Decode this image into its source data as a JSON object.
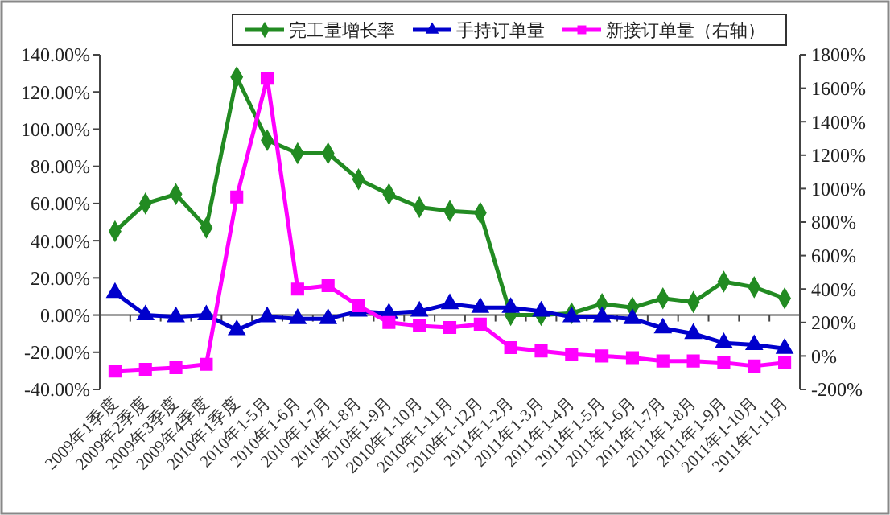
{
  "chart_data": {
    "type": "line",
    "categories": [
      "2009年1季度",
      "2009年2季度",
      "2009年3季度",
      "2009年4季度",
      "2010年1季度",
      "2010年1-5月",
      "2010年1-6月",
      "2010年1-7月",
      "2010年1-8月",
      "2010年1-9月",
      "2010年1-10月",
      "2010年1-11月",
      "2010年1-12月",
      "2011年1-2月",
      "2011年1-3月",
      "2011年1-4月",
      "2011年1-5月",
      "2011年1-6月",
      "2011年1-7月",
      "2011年1-8月",
      "2011年1-9月",
      "2011年1-10月",
      "2011年1-11月"
    ],
    "series": [
      {
        "name": "完工量增长率",
        "color": "#228b22",
        "marker": "diamond",
        "values": [
          45,
          60,
          65,
          47,
          128,
          94,
          87,
          87,
          73,
          65,
          58,
          56,
          55,
          0,
          0,
          1,
          6,
          4,
          9,
          7,
          18,
          15,
          9
        ]
      },
      {
        "name": "手持订单量",
        "color": "#0000cc",
        "marker": "triangle",
        "values": [
          12,
          0,
          -1,
          0,
          -8,
          -1,
          -2,
          -2,
          2,
          1,
          2,
          6,
          4,
          4,
          2,
          -1,
          -1,
          -2,
          -7,
          -10,
          -15,
          -16,
          -18
        ]
      },
      {
        "name": "新接订单量（右轴）",
        "color": "#ff00ff",
        "marker": "square",
        "axis": "y2",
        "values": [
          -90,
          -80,
          -70,
          -50,
          950,
          1660,
          400,
          420,
          300,
          200,
          180,
          170,
          190,
          50,
          30,
          10,
          0,
          -10,
          -30,
          -30,
          -40,
          -60,
          -40
        ]
      }
    ],
    "ylim": [
      -40,
      140
    ],
    "yticks": [
      {
        "value": -40,
        "label": "-40.00%"
      },
      {
        "value": -20,
        "label": "-20.00%"
      },
      {
        "value": 0,
        "label": "0.00%"
      },
      {
        "value": 20,
        "label": "20.00%"
      },
      {
        "value": 40,
        "label": "40.00%"
      },
      {
        "value": 60,
        "label": "60.00%"
      },
      {
        "value": 80,
        "label": "80.00%"
      },
      {
        "value": 100,
        "label": "100.00%"
      },
      {
        "value": 120,
        "label": "120.00%"
      },
      {
        "value": 140,
        "label": "140.00%"
      }
    ],
    "y2lim": [
      -200,
      1800
    ],
    "y2ticks": [
      {
        "value": -200,
        "label": "-200%"
      },
      {
        "value": 0,
        "label": "0%"
      },
      {
        "value": 200,
        "label": "200%"
      },
      {
        "value": 400,
        "label": "400%"
      },
      {
        "value": 600,
        "label": "600%"
      },
      {
        "value": 800,
        "label": "800%"
      },
      {
        "value": 1000,
        "label": "1000%"
      },
      {
        "value": 1200,
        "label": "1200%"
      },
      {
        "value": 1400,
        "label": "1400%"
      },
      {
        "value": 1600,
        "label": "1600%"
      },
      {
        "value": 1800,
        "label": "1800%"
      }
    ],
    "legend": "top"
  }
}
